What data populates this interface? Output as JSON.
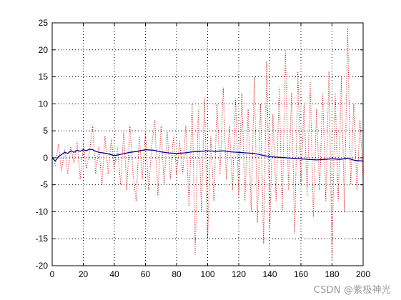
{
  "chart_data": {
    "type": "line",
    "title": "",
    "xlabel": "",
    "ylabel": "",
    "xlim": [
      0,
      200
    ],
    "ylim": [
      -20,
      25
    ],
    "grid": true,
    "grid_style": "dotted",
    "x_ticks": [
      0,
      20,
      40,
      60,
      80,
      100,
      120,
      140,
      160,
      180,
      200
    ],
    "y_ticks": [
      -20,
      -15,
      -10,
      -5,
      0,
      5,
      10,
      15,
      20,
      25
    ],
    "series": [
      {
        "style": "dotted",
        "color": "#cc0000",
        "x": [
          0,
          2,
          4,
          6,
          8,
          10,
          12,
          14,
          16,
          18,
          20,
          22,
          24,
          26,
          28,
          30,
          32,
          34,
          36,
          38,
          40,
          42,
          44,
          46,
          48,
          50,
          52,
          54,
          56,
          58,
          60,
          62,
          64,
          66,
          68,
          70,
          72,
          74,
          76,
          78,
          80,
          82,
          84,
          86,
          88,
          90,
          92,
          94,
          96,
          98,
          100,
          102,
          104,
          106,
          108,
          110,
          112,
          114,
          116,
          118,
          120,
          122,
          124,
          126,
          128,
          130,
          132,
          134,
          136,
          138,
          140,
          142,
          144,
          146,
          148,
          150,
          152,
          154,
          156,
          158,
          160,
          162,
          164,
          166,
          168,
          170,
          172,
          174,
          176,
          178,
          180,
          182,
          184,
          186,
          188,
          190,
          192,
          194,
          196,
          198,
          200
        ],
        "y": [
          0.5,
          -1.5,
          2.5,
          -2.5,
          1.5,
          -3,
          2,
          -1,
          3,
          -4,
          2.5,
          -2,
          1,
          6,
          -3,
          2,
          -5,
          4,
          -3,
          3.5,
          -2,
          2,
          -5,
          5,
          -6,
          6,
          -3,
          -8,
          4,
          -4,
          5,
          -6,
          2,
          7,
          -7,
          6,
          -5,
          5,
          -4,
          4,
          -3,
          3,
          -3,
          6,
          -9,
          10,
          -18,
          9,
          -10,
          11,
          -15,
          4,
          -8,
          10,
          -3,
          13,
          -4,
          6,
          -6,
          11,
          -7,
          12,
          -8,
          9,
          -10,
          15,
          -12,
          10,
          -16,
          18,
          -13,
          8,
          -8,
          13,
          -10,
          20,
          -6,
          12,
          -14,
          16,
          -5,
          10,
          -7,
          14,
          -11,
          9,
          -6,
          12,
          -8,
          16,
          -19,
          12,
          -8,
          15,
          -10,
          24,
          -5,
          10,
          -6,
          7,
          -4
        ]
      },
      {
        "style": "solid",
        "color": "#00008b",
        "x": [
          0,
          2,
          4,
          6,
          8,
          10,
          12,
          14,
          16,
          18,
          20,
          22,
          24,
          26,
          28,
          30,
          35,
          40,
          45,
          50,
          55,
          60,
          65,
          70,
          75,
          80,
          85,
          90,
          95,
          100,
          105,
          110,
          115,
          120,
          125,
          130,
          135,
          140,
          145,
          150,
          155,
          160,
          165,
          170,
          175,
          180,
          185,
          190,
          195,
          200
        ],
        "y": [
          0,
          -0.6,
          0.2,
          0.6,
          1.0,
          0.8,
          1.3,
          1.0,
          1.4,
          1.2,
          1.5,
          1.3,
          1.6,
          1.5,
          1.2,
          1.0,
          0.8,
          0.4,
          0.7,
          1.0,
          1.2,
          1.5,
          1.4,
          1.1,
          0.9,
          0.8,
          0.9,
          1.1,
          1.2,
          1.3,
          1.2,
          1.3,
          1.1,
          1.0,
          0.9,
          0.8,
          0.5,
          0.2,
          0.1,
          0.0,
          -0.1,
          -0.2,
          -0.3,
          -0.4,
          -0.3,
          -0.2,
          -0.3,
          -0.1,
          -0.5,
          -0.6
        ]
      }
    ]
  },
  "watermark": "CSDN @紫极神光"
}
